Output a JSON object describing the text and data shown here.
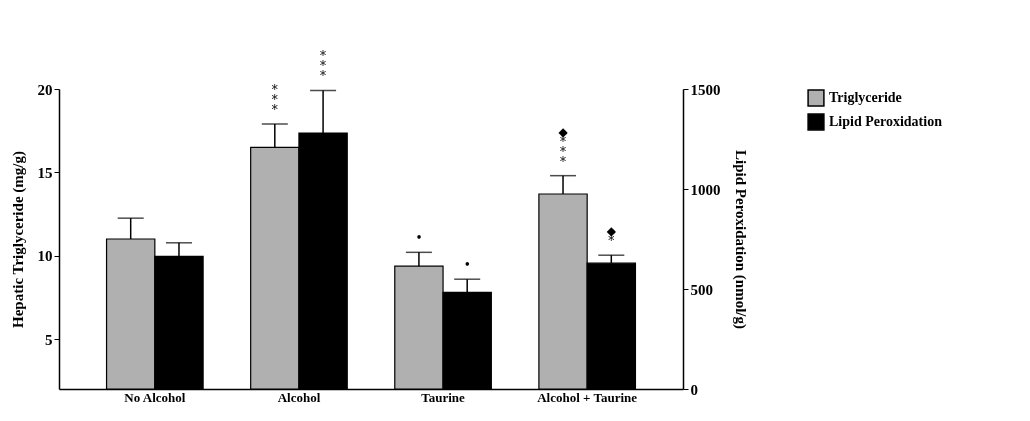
{
  "chart_data": {
    "type": "bar",
    "categories": [
      "No Alcohol",
      "Alcohol",
      "Taurine",
      "Alcohol + Taurine"
    ],
    "ylabel": "Hepatic Triglyceride (mg/g)",
    "y2label": "Lipid Peroxidation (nmol/g)",
    "series": [
      {
        "name": "Triglyceride",
        "color": "#b0b0b0",
        "values": [
          11.0,
          16.5,
          9.37,
          13.7
        ],
        "errors": [
          [
            11.0,
            12.25
          ],
          [
            16.5,
            17.9
          ],
          [
            9.37,
            10.2
          ],
          [
            13.7,
            14.8
          ]
        ]
      },
      {
        "name": "Lipid Peroxidation",
        "color": "#000000",
        "axis": "y2",
        "values": [
          663,
          1280,
          483,
          629
        ],
        "errors": [
          [
            663,
            731
          ],
          [
            1280,
            1493
          ],
          [
            483,
            549
          ],
          [
            629,
            669
          ]
        ]
      }
    ],
    "ylim": [
      2,
      20
    ],
    "yticks": [
      5,
      10,
      15,
      20
    ],
    "y2lim": [
      0,
      1500
    ],
    "y2ticks": [
      0,
      500,
      1000,
      1500
    ],
    "annotations": [
      "***",
      "***",
      "•",
      "•",
      "◆***",
      "◆*"
    ],
    "legend": "top right",
    "grid": false
  }
}
